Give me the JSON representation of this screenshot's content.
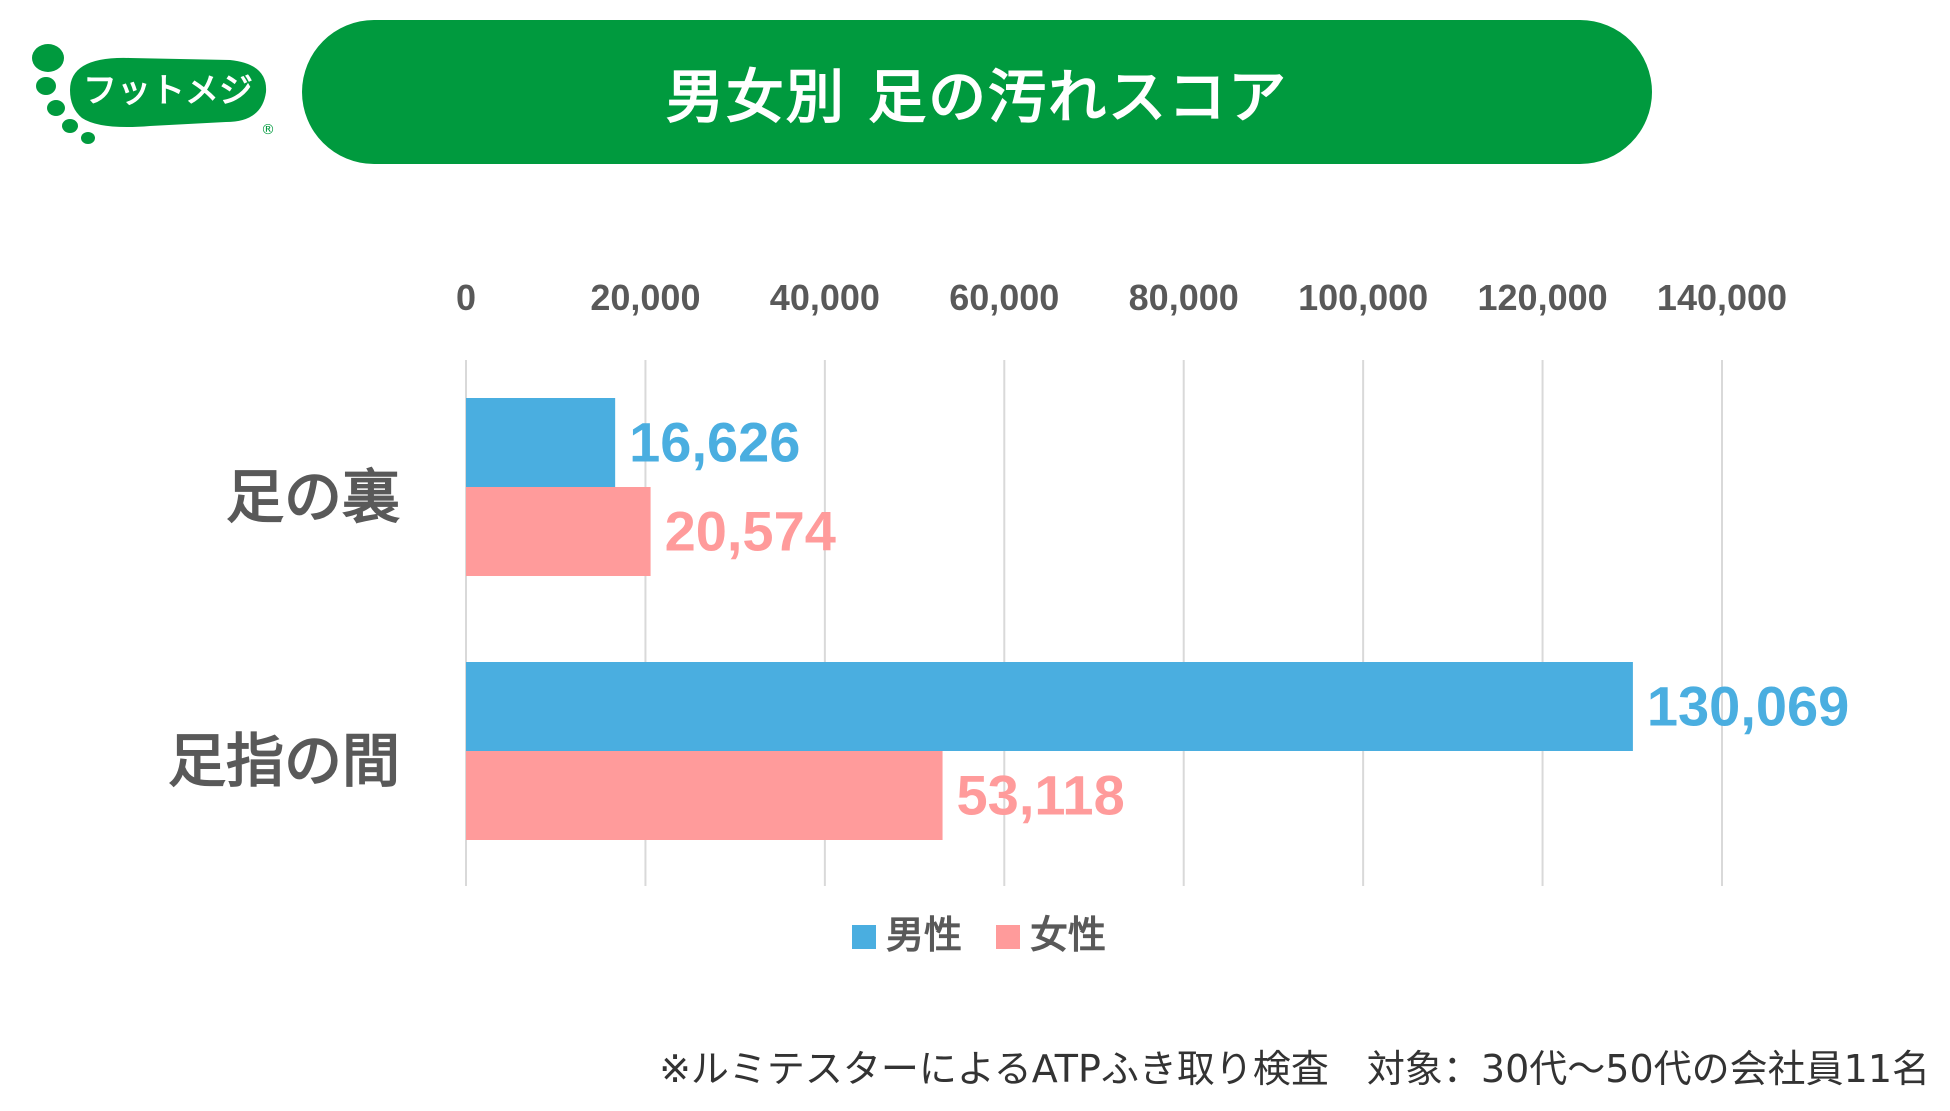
{
  "logo": {
    "text": "フットメジ",
    "mark": "®"
  },
  "colors": {
    "brand_green": "#009a3e",
    "male": "#4aaee0",
    "female": "#ff9b9b",
    "axis_text": "#595959",
    "grid": "#d9d9d9"
  },
  "chart_data": {
    "type": "bar",
    "orientation": "horizontal",
    "title": "男女別 足の汚れスコア",
    "categories": [
      "足の裏",
      "足指の間"
    ],
    "series": [
      {
        "name": "男性",
        "values": [
          16626,
          130069
        ],
        "labels": [
          "16,626",
          "130,069"
        ]
      },
      {
        "name": "女性",
        "values": [
          20574,
          53118
        ],
        "labels": [
          "20,574",
          "53,118"
        ]
      }
    ],
    "xlim": [
      0,
      140000
    ],
    "ticks": [
      0,
      20000,
      40000,
      60000,
      80000,
      100000,
      120000,
      140000
    ],
    "tick_labels": [
      "0",
      "20,000",
      "40,000",
      "60,000",
      "80,000",
      "100,000",
      "120,000",
      "140,000"
    ],
    "axis_position": "top",
    "grid": true,
    "legend": "bottom"
  },
  "footnote": "※ルミテスターによるATPふき取り検査　対象：30代～50代の会社員11名"
}
